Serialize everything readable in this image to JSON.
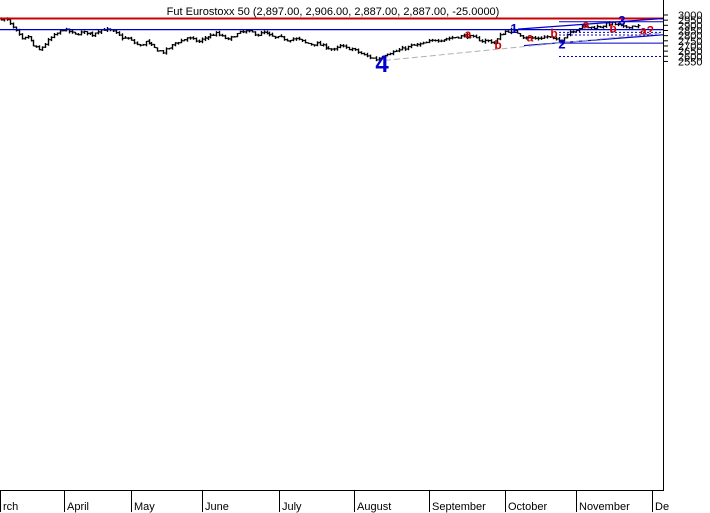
{
  "chart_data": {
    "type": "ohlc",
    "title": "Fut Eurostoxx 50 (2,897.00, 2,906.00, 2,887.00, 2,887.00, -25.0000)",
    "ylim": [
      2520,
      3010
    ],
    "y_ticks": [
      2550,
      2600,
      2650,
      2700,
      2750,
      2800,
      2850,
      2900,
      2950,
      3000
    ],
    "x_months": [
      "rch",
      "April",
      "May",
      "June",
      "July",
      "August",
      "September",
      "October",
      "November",
      "De"
    ],
    "grid": false,
    "colors": {
      "bars": "#000000",
      "resistance": "#cc0000",
      "trend": "#0000cc",
      "wave_label": "#0000cc",
      "sub_wave_label": "#cc0000",
      "guide": "#b0b0b0"
    },
    "levels": [
      {
        "kind": "resistance",
        "y": 2966
      },
      {
        "kind": "support",
        "y": 2858
      }
    ],
    "wave_labels": [
      {
        "text": "4",
        "y": 2545,
        "major": true
      },
      {
        "text": "1",
        "y": 2863
      },
      {
        "text": "2",
        "y": 2715
      },
      {
        "text": "3",
        "y": 2942
      }
    ],
    "sub_wave_labels": [
      {
        "text": "a",
        "y": 2816
      },
      {
        "text": "b",
        "y": 2708
      },
      {
        "text": "a",
        "y": 2781
      },
      {
        "text": "b",
        "y": 2819
      },
      {
        "text": "a",
        "y": 2909
      },
      {
        "text": "b",
        "y": 2867
      },
      {
        "text": "a?",
        "y": 2849
      }
    ],
    "segments": [
      {
        "y": [
          2859,
          2858
        ],
        "y_start": 2859,
        "y_end": 2858
      },
      {
        "y": [
          2832
        ]
      },
      {
        "y": [
          2806
        ]
      },
      {
        "y": [
          2598
        ]
      }
    ]
  }
}
